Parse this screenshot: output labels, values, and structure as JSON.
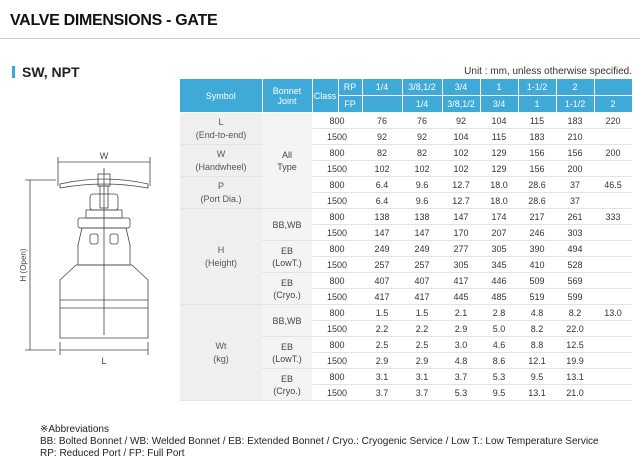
{
  "page": {
    "title": "VALVE DIMENSIONS - GATE",
    "section": "SW, NPT",
    "unit_note": "Unit : mm, unless otherwise specified."
  },
  "drawing": {
    "w_label": "W",
    "h_label": "H (Open)",
    "l_label": "L"
  },
  "table": {
    "headers": {
      "symbol": "Symbol",
      "bonnet": "Bonnet Joint",
      "class": "Class",
      "rp": "RP",
      "fp": "FP",
      "rp_sizes": [
        "1/4",
        "3/8,1/2",
        "3/4",
        "1",
        "1-1/2",
        "2"
      ],
      "fp_sizes": [
        "1/4",
        "3/8,1/2",
        "3/4",
        "1",
        "1-1/2",
        "2"
      ]
    },
    "groups": {
      "L": {
        "label": "L",
        "sub": "(End-to-end)"
      },
      "W": {
        "label": "W",
        "sub": "(Handwheel)"
      },
      "P": {
        "label": "P",
        "sub": "(Port Dia.)"
      },
      "H": {
        "label": "H",
        "sub": "(Height)"
      },
      "Wt": {
        "label": "Wt",
        "sub": "(kg)"
      }
    },
    "bonnet": {
      "all": "All",
      "all_sub": "Type",
      "bbwb": "BB,WB",
      "eb": "EB",
      "lowt": "(LowT.)",
      "cryo": "(Cryo.)"
    },
    "rows": [
      [
        "800",
        "76",
        "76",
        "92",
        "104",
        "115",
        "183",
        "220"
      ],
      [
        "1500",
        "92",
        "92",
        "104",
        "115",
        "183",
        "210",
        ""
      ],
      [
        "800",
        "82",
        "82",
        "102",
        "129",
        "156",
        "156",
        "200"
      ],
      [
        "1500",
        "102",
        "102",
        "102",
        "129",
        "156",
        "200",
        ""
      ],
      [
        "800",
        "6.4",
        "9.6",
        "12.7",
        "18.0",
        "28.6",
        "37",
        "46.5"
      ],
      [
        "1500",
        "6.4",
        "9.6",
        "12.7",
        "18.0",
        "28.6",
        "37",
        ""
      ],
      [
        "800",
        "138",
        "138",
        "147",
        "174",
        "217",
        "261",
        "333"
      ],
      [
        "1500",
        "147",
        "147",
        "170",
        "207",
        "246",
        "303",
        ""
      ],
      [
        "800",
        "249",
        "249",
        "277",
        "305",
        "390",
        "494",
        ""
      ],
      [
        "1500",
        "257",
        "257",
        "305",
        "345",
        "410",
        "528",
        ""
      ],
      [
        "800",
        "407",
        "407",
        "417",
        "446",
        "509",
        "569",
        ""
      ],
      [
        "1500",
        "417",
        "417",
        "445",
        "485",
        "519",
        "599",
        ""
      ],
      [
        "800",
        "1.5",
        "1.5",
        "2.1",
        "2.8",
        "4.8",
        "8.2",
        "13.0"
      ],
      [
        "1500",
        "2.2",
        "2.2",
        "2.9",
        "5.0",
        "8.2",
        "22.0",
        ""
      ],
      [
        "800",
        "2.5",
        "2.5",
        "3.0",
        "4.6",
        "8.8",
        "12.5",
        ""
      ],
      [
        "1500",
        "2.9",
        "2.9",
        "4.8",
        "8.6",
        "12.1",
        "19.9",
        ""
      ],
      [
        "800",
        "3.1",
        "3.1",
        "3.7",
        "5.3",
        "9.5",
        "13.1",
        ""
      ],
      [
        "1500",
        "3.7",
        "3.7",
        "5.3",
        "9.5",
        "13.1",
        "21.0",
        ""
      ]
    ]
  },
  "abbreviations": {
    "title": "※Abbreviations",
    "line1": "BB: Bolted Bonnet / WB: Welded Bonnet / EB: Extended Bonnet / Cryo.: Cryogenic Service / Low T.: Low Temperature Service",
    "line2": "RP: Reduced Port / FP: Full Port"
  },
  "colors": {
    "header_blue": "#3fa9d8",
    "accent": "#36a9d4",
    "gray_cell": "#efefef"
  }
}
